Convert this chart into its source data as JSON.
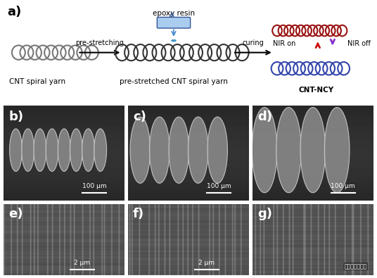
{
  "panel_label_a": "a)",
  "panel_label_b": "b)",
  "panel_label_c": "c)",
  "panel_label_d": "d)",
  "panel_label_e": "e)",
  "panel_label_f": "f)",
  "panel_label_g": "g)",
  "label_cnt": "CNT spiral yarn",
  "label_pre": "pre-stretched CNT spiral yarn",
  "label_cnt_ncy": "CNT-NCY",
  "label_epoxy": "epoxy resin",
  "label_pre_stretching": "pre-stretching",
  "label_curing": "curing",
  "label_nir_on": "NIR on",
  "label_nir_off": "NIR off",
  "scale_100um": "100 μm",
  "scale_2um": "2 μm",
  "bg_color": "#ffffff",
  "sem_bg_dark": "#2a2a2a",
  "sem_bg_mid": "#383838",
  "sem_efg_bg": "#4a4a4a",
  "panel_label_color": "#ffffff",
  "panel_label_color_a": "#000000",
  "arrow_color": "#000000",
  "nir_on_color": "#cc1111",
  "nir_off_color": "#8833cc",
  "coil_red_color": "#aa2222",
  "coil_blue_color": "#3344aa",
  "coil_gray_color": "#666666",
  "text_color_dark": "#000000",
  "font_size_label": 11,
  "font_size_sub": 9,
  "font_size_panel": 13
}
